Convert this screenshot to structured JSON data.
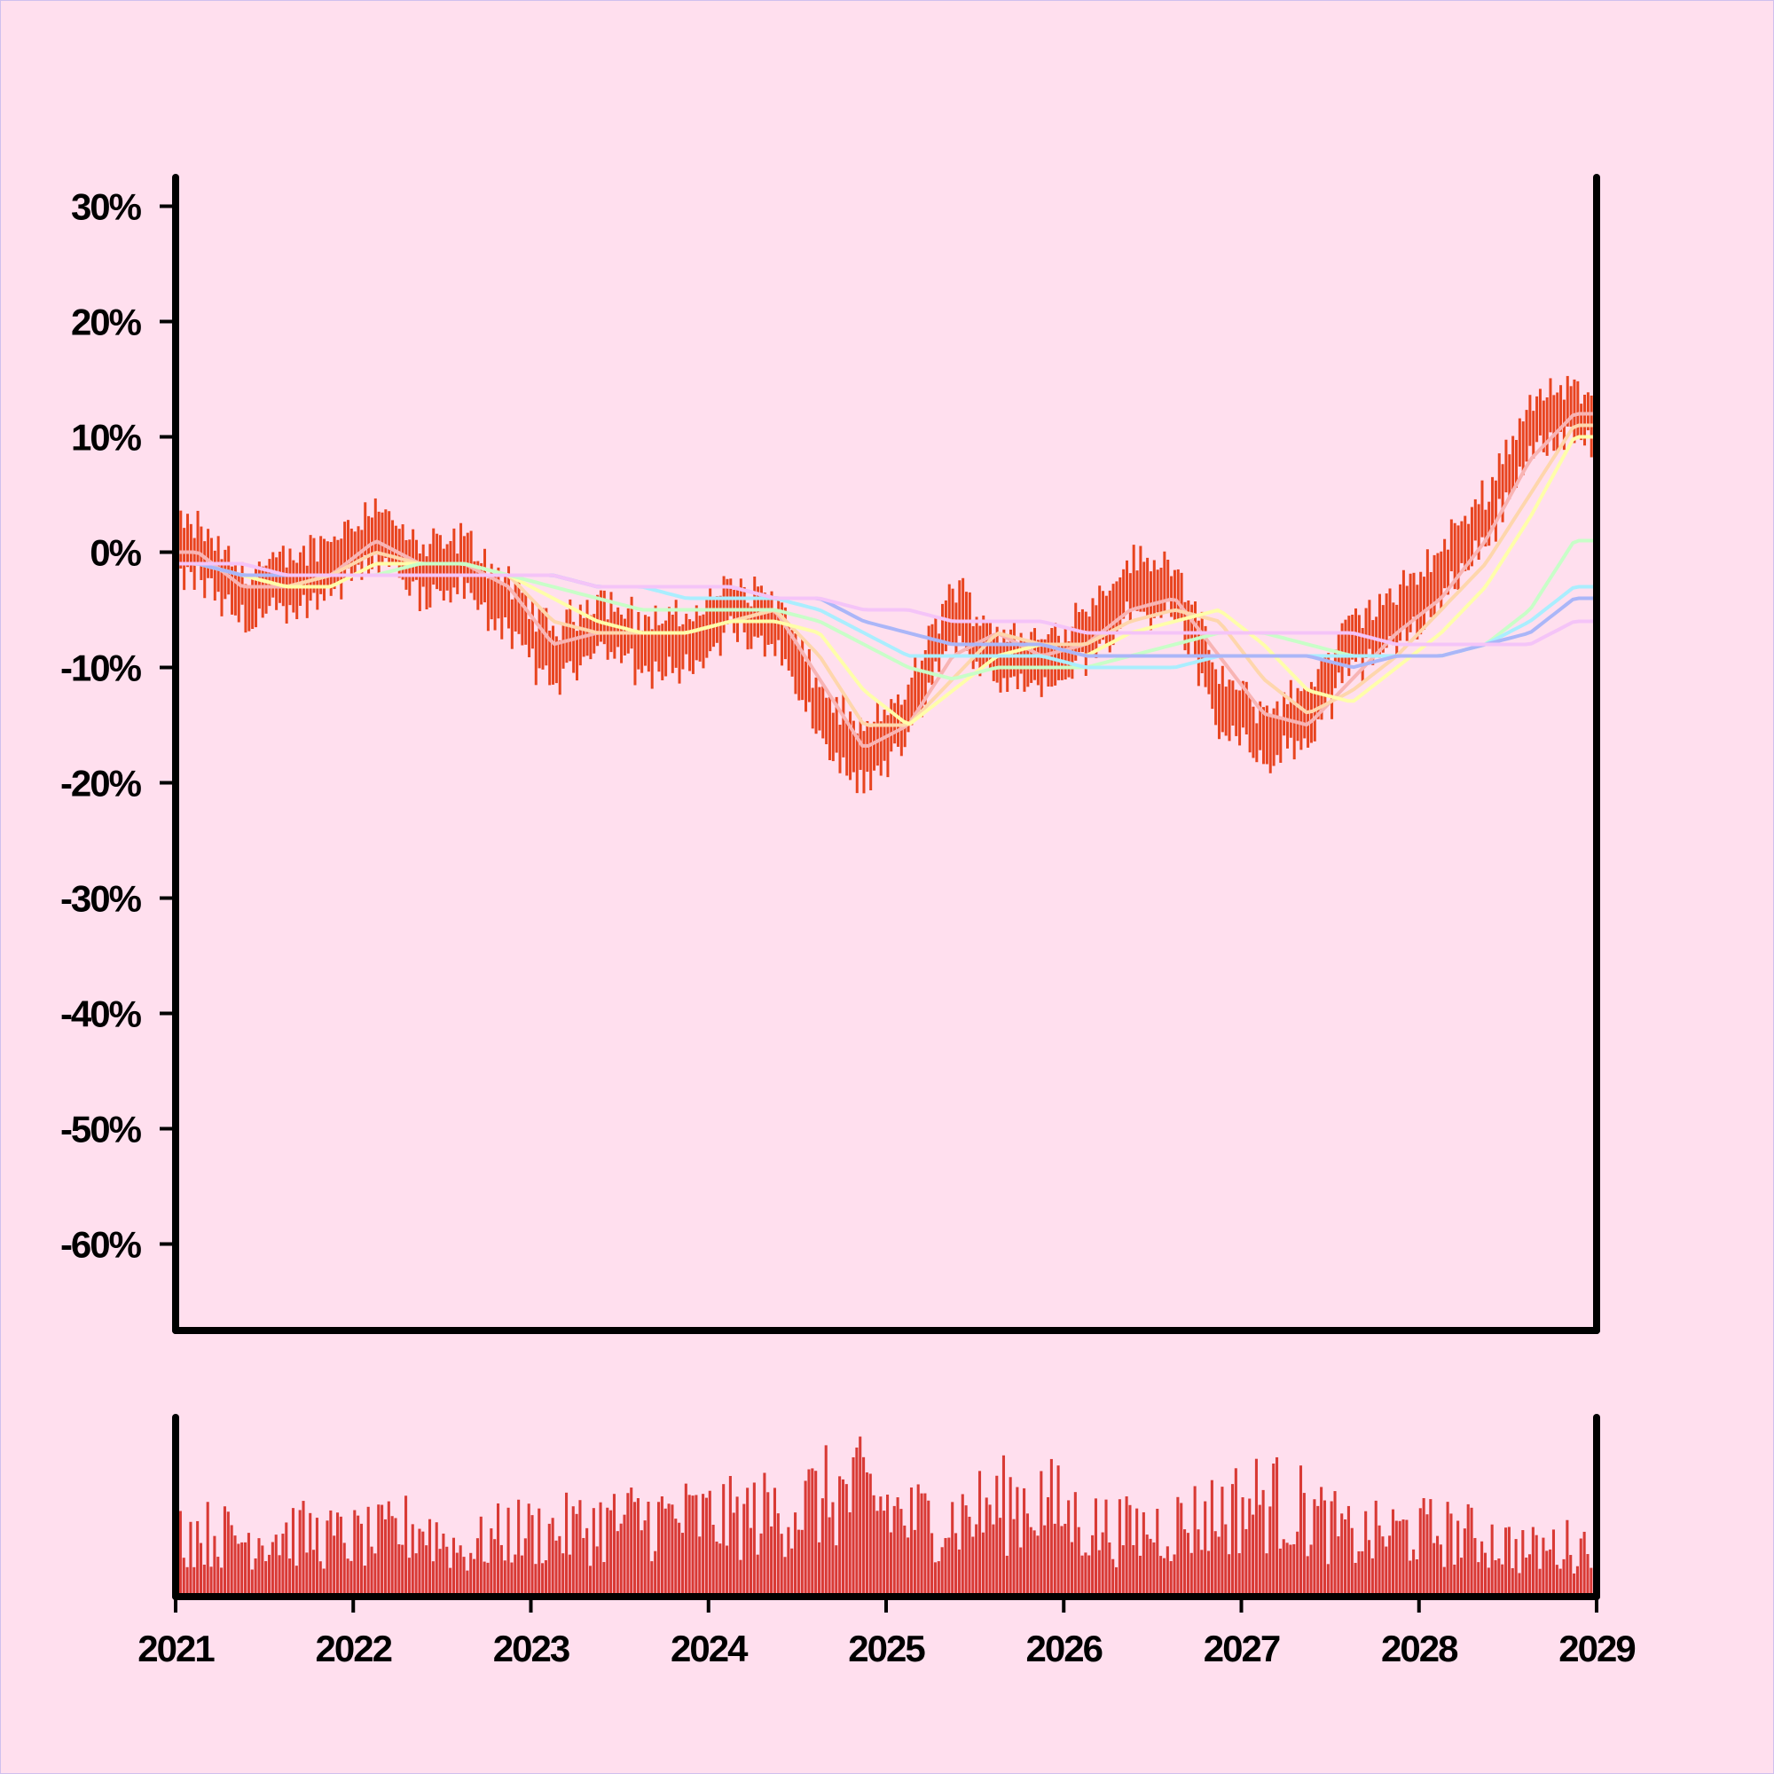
{
  "chart_data": [
    {
      "type": "line",
      "title": "",
      "xlabel": "",
      "ylabel": "",
      "x_ticks": [
        "2021",
        "2022",
        "2023",
        "2024",
        "2025",
        "2026",
        "2027",
        "2028",
        "2029"
      ],
      "xlim": [
        "2021-01-01",
        "2029-01-01"
      ],
      "y_ticks": [
        "30%",
        "20%",
        "10%",
        "0%",
        "-10%",
        "-20%",
        "-30%",
        "-40%",
        "-50%",
        "-60%"
      ],
      "ylim": [
        -67.5,
        32.5
      ],
      "grid": false,
      "price_bars": {
        "frequency": "weekly",
        "color": "#e8441f",
        "close_by_quarter": {
          "x": [
            "2021-Q1",
            "2021-Q2",
            "2021-Q3",
            "2021-Q4",
            "2022-Q1",
            "2022-Q2",
            "2022-Q3",
            "2022-Q4",
            "2023-Q1",
            "2023-Q2",
            "2023-Q3",
            "2023-Q4",
            "2024-Q1",
            "2024-Q2",
            "2024-Q3",
            "2024-Q4",
            "2025-Q1",
            "2025-Q2",
            "2025-Q3",
            "2025-Q4",
            "2026-Q1",
            "2026-Q2",
            "2026-Q3",
            "2026-Q4",
            "2027-Q1",
            "2027-Q2",
            "2027-Q3",
            "2027-Q4",
            "2028-Q1",
            "2028-Q2",
            "2028-Q3",
            "2028-Q4"
          ],
          "values": [
            0,
            -4,
            -3,
            -1,
            2,
            -2,
            -1,
            -5,
            -9,
            -6,
            -8,
            -8,
            -5,
            -6,
            -14,
            -18,
            -14,
            -5,
            -9,
            -10,
            -7,
            -3,
            -3,
            -13,
            -16,
            -14,
            -8,
            -6,
            -2,
            3,
            11,
            12
          ]
        },
        "bar_range_pct": 3
      },
      "series": [
        {
          "color": "#f8b4b4",
          "values": [
            0,
            -3,
            -3,
            -2,
            1,
            -1,
            -1,
            -3,
            -8,
            -7,
            -7,
            -7,
            -6,
            -5,
            -11,
            -17,
            -15,
            -9,
            -7,
            -9,
            -8,
            -5,
            -4,
            -9,
            -14,
            -15,
            -11,
            -7,
            -4,
            1,
            8,
            12
          ]
        },
        {
          "color": "#fed6ac",
          "values": [
            -1,
            -2,
            -3,
            -2,
            0,
            -1,
            -1,
            -2,
            -6,
            -7,
            -7,
            -7,
            -6,
            -5,
            -9,
            -15,
            -15,
            -11,
            -7,
            -8,
            -8,
            -6,
            -5,
            -6,
            -11,
            -14,
            -12,
            -9,
            -5,
            -1,
            5,
            11
          ]
        },
        {
          "color": "#fefeaa",
          "values": [
            -1,
            -2,
            -3,
            -3,
            -1,
            -1,
            -1,
            -2,
            -4,
            -6,
            -7,
            -7,
            -6,
            -6,
            -7,
            -12,
            -15,
            -12,
            -9,
            -8,
            -9,
            -7,
            -6,
            -5,
            -8,
            -12,
            -13,
            -10,
            -7,
            -3,
            3,
            10
          ]
        },
        {
          "color": "#c8fec8",
          "values": [
            -1,
            -2,
            -2,
            -2,
            -2,
            -1,
            -1,
            -2,
            -3,
            -4,
            -5,
            -5,
            -5,
            -5,
            -6,
            -8,
            -10,
            -11,
            -10,
            -10,
            -10,
            -9,
            -8,
            -7,
            -7,
            -8,
            -9,
            -9,
            -9,
            -8,
            -5,
            1
          ]
        },
        {
          "color": "#aaeefe",
          "values": [
            -1,
            -2,
            -2,
            -2,
            -2,
            -2,
            -2,
            -2,
            -2,
            -3,
            -3,
            -4,
            -4,
            -4,
            -5,
            -7,
            -9,
            -9,
            -9,
            -9,
            -10,
            -10,
            -10,
            -9,
            -9,
            -9,
            -9,
            -9,
            -9,
            -8,
            -6,
            -3
          ]
        },
        {
          "color": "#aab6f8",
          "values": [
            -1,
            -2,
            -2,
            -2,
            -2,
            -2,
            -2,
            -2,
            -2,
            -3,
            -3,
            -3,
            -3,
            -4,
            -4,
            -6,
            -7,
            -8,
            -8,
            -8,
            -9,
            -9,
            -9,
            -9,
            -9,
            -9,
            -10,
            -9,
            -9,
            -8,
            -7,
            -4
          ]
        },
        {
          "color": "#f4c4f8",
          "values": [
            -1,
            -1,
            -2,
            -2,
            -2,
            -2,
            -2,
            -2,
            -2,
            -3,
            -3,
            -3,
            -3,
            -4,
            -4,
            -5,
            -5,
            -6,
            -6,
            -6,
            -7,
            -7,
            -7,
            -7,
            -7,
            -7,
            -7,
            -8,
            -8,
            -8,
            -8,
            -6
          ]
        }
      ]
    },
    {
      "type": "bar",
      "title": "",
      "name": "",
      "color": "#d93a35",
      "x_ticks": [
        "2021",
        "2022",
        "2023",
        "2024",
        "2025",
        "2026",
        "2027",
        "2028",
        "2029"
      ],
      "frequency": "weekly",
      "ylim": [
        0,
        1
      ],
      "volume_by_quarter": {
        "x": [
          "2021-Q1",
          "2021-Q2",
          "2021-Q3",
          "2021-Q4",
          "2022-Q1",
          "2022-Q2",
          "2022-Q3",
          "2022-Q4",
          "2023-Q1",
          "2023-Q2",
          "2023-Q3",
          "2023-Q4",
          "2024-Q1",
          "2024-Q2",
          "2024-Q3",
          "2024-Q4",
          "2025-Q1",
          "2025-Q2",
          "2025-Q3",
          "2025-Q4",
          "2026-Q1",
          "2026-Q2",
          "2026-Q3",
          "2026-Q4",
          "2027-Q1",
          "2027-Q2",
          "2027-Q3",
          "2027-Q4",
          "2028-Q1",
          "2028-Q2",
          "2028-Q3",
          "2028-Q4"
        ],
        "values": [
          0.5,
          0.45,
          0.5,
          0.45,
          0.45,
          0.55,
          0.35,
          0.5,
          0.5,
          0.55,
          0.6,
          0.6,
          0.6,
          0.65,
          0.75,
          0.8,
          0.6,
          0.6,
          0.7,
          0.75,
          0.55,
          0.5,
          0.55,
          0.65,
          0.75,
          0.65,
          0.45,
          0.5,
          0.5,
          0.45,
          0.35,
          0.4
        ]
      }
    }
  ]
}
